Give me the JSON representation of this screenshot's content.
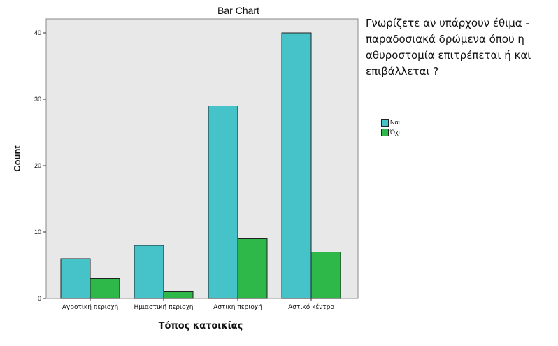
{
  "chart_data": {
    "type": "bar",
    "title": "Bar Chart",
    "xlabel": "Τόπος κατοικίας",
    "ylabel": "Count",
    "categories": [
      "Αγροτική περιοχή",
      "Ημιαστική περιοχή",
      "Αστική περιοχή",
      "Αστικό κέντρο"
    ],
    "series": [
      {
        "name": "Ναι",
        "values": [
          6,
          8,
          29,
          40
        ],
        "color": "#46c3c8"
      },
      {
        "name": "Όχι",
        "values": [
          3,
          1,
          9,
          7
        ],
        "color": "#2eb84a"
      }
    ],
    "ylim": [
      0,
      41
    ],
    "yticks": [
      0,
      10,
      20,
      30,
      40
    ],
    "grid": false,
    "legend_title": "Γνωρίζετε αν υπάρχουν έθιμα - παραδοσιακά δρώμενα όπου η αθυροστομία επιτρέπεται ή και επιβάλλεται ?",
    "legend_position": "right",
    "plot_background": "#e8e8e8"
  }
}
